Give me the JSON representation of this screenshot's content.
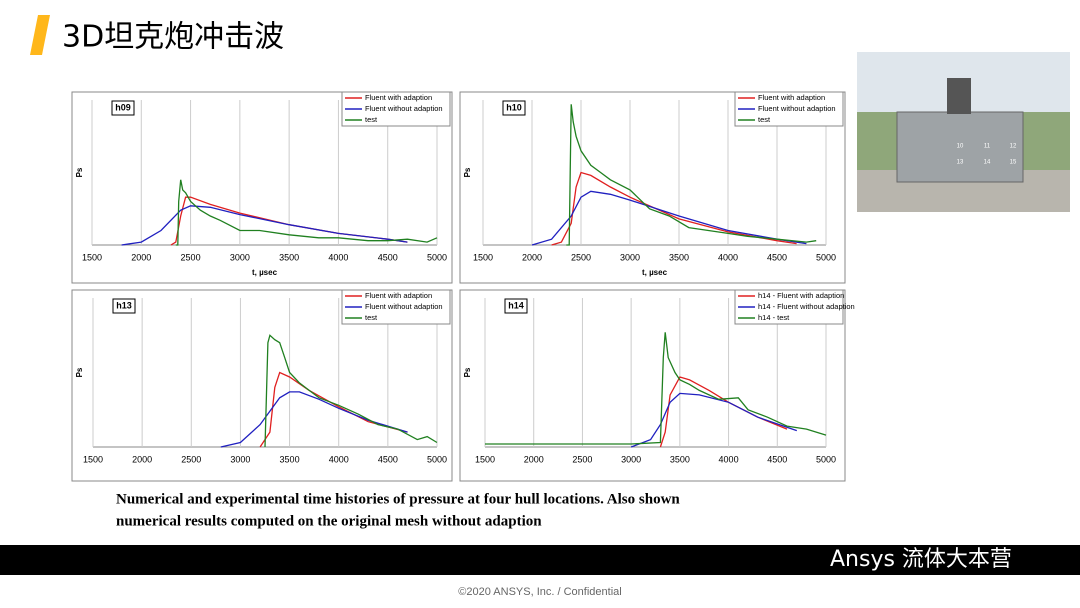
{
  "title": "3D坦克炮冲击波",
  "caption": [
    "Numerical and experimental time histories of pressure at four hull locations. Also shown",
    "numerical results computed on the original mesh without adaption"
  ],
  "footer": "©2020 ANSYS, Inc. / Confidential",
  "watermark": "Ansys 流体大本营",
  "photo": {
    "labels": [
      "10",
      "11",
      "12",
      "13",
      "14",
      "15"
    ]
  },
  "chart_data": [
    {
      "type": "line",
      "title": "h09",
      "xlabel": "t, µsec",
      "ylabel": "Ps",
      "xlim": [
        1500,
        5000
      ],
      "xticks": [
        1500,
        2000,
        2500,
        3000,
        3500,
        4000,
        4500,
        5000
      ],
      "ylim": [
        0,
        1
      ],
      "grid": true,
      "legend": "upper right",
      "series": [
        {
          "name": "Fluent with adaption",
          "color": "#e02020",
          "x": [
            2300,
            2350,
            2400,
            2450,
            2500,
            2700,
            3000,
            3500,
            4000,
            4500,
            4700
          ],
          "values": [
            0,
            0.02,
            0.2,
            0.33,
            0.33,
            0.28,
            0.22,
            0.14,
            0.08,
            0.04,
            0.02
          ]
        },
        {
          "name": "Fluent without adaption",
          "color": "#2020c0",
          "x": [
            1800,
            2000,
            2200,
            2400,
            2500,
            2700,
            3000,
            3500,
            4000,
            4500,
            4700
          ],
          "values": [
            0,
            0.02,
            0.1,
            0.24,
            0.27,
            0.26,
            0.21,
            0.14,
            0.08,
            0.04,
            0.02
          ]
        },
        {
          "name": "test",
          "color": "#208020",
          "x": [
            2350,
            2370,
            2380,
            2400,
            2420,
            2450,
            2500,
            2600,
            2700,
            2800,
            3000,
            3200,
            3500,
            3800,
            4000,
            4300,
            4500,
            4700,
            4900,
            5000
          ],
          "values": [
            0,
            0,
            0.3,
            0.45,
            0.38,
            0.36,
            0.3,
            0.24,
            0.2,
            0.17,
            0.1,
            0.1,
            0.07,
            0.05,
            0.05,
            0.03,
            0.03,
            0.04,
            0.02,
            0.05
          ]
        }
      ]
    },
    {
      "type": "line",
      "title": "h10",
      "xlabel": "t, µsec",
      "ylabel": "Ps",
      "xlim": [
        1500,
        5000
      ],
      "xticks": [
        1500,
        2000,
        2500,
        3000,
        3500,
        4000,
        4500,
        5000
      ],
      "ylim": [
        0,
        1
      ],
      "grid": true,
      "legend": "upper right",
      "series": [
        {
          "name": "Fluent with adaption",
          "color": "#e02020",
          "x": [
            2200,
            2300,
            2400,
            2450,
            2500,
            2600,
            2800,
            3000,
            3500,
            4000,
            4500,
            4700
          ],
          "values": [
            0,
            0.02,
            0.15,
            0.4,
            0.5,
            0.48,
            0.4,
            0.33,
            0.18,
            0.09,
            0.03,
            0.01
          ]
        },
        {
          "name": "Fluent without adaption",
          "color": "#2020c0",
          "x": [
            2000,
            2200,
            2400,
            2500,
            2600,
            2800,
            3000,
            3500,
            4000,
            4500,
            4800
          ],
          "values": [
            0,
            0.04,
            0.2,
            0.33,
            0.37,
            0.35,
            0.31,
            0.2,
            0.1,
            0.04,
            0.01
          ]
        },
        {
          "name": "test",
          "color": "#208020",
          "x": [
            2350,
            2380,
            2390,
            2400,
            2420,
            2450,
            2500,
            2600,
            2700,
            2800,
            3000,
            3200,
            3400,
            3600,
            3800,
            4000,
            4200,
            4500,
            4800,
            4900
          ],
          "values": [
            0,
            0,
            0.5,
            0.97,
            0.85,
            0.75,
            0.65,
            0.55,
            0.5,
            0.45,
            0.38,
            0.25,
            0.2,
            0.12,
            0.1,
            0.08,
            0.06,
            0.04,
            0.02,
            0.03
          ]
        }
      ]
    },
    {
      "type": "line",
      "title": "h13",
      "ylabel": "Ps",
      "xlim": [
        1500,
        5000
      ],
      "xticks": [
        1500,
        2000,
        2500,
        3000,
        3500,
        4000,
        4500,
        5000
      ],
      "ylim": [
        0,
        1
      ],
      "grid": true,
      "legend": "upper right",
      "series": [
        {
          "name": "Fluent with adaption",
          "color": "#e02020",
          "x": [
            3200,
            3300,
            3350,
            3400,
            3500,
            3700,
            4000,
            4300,
            4700
          ],
          "values": [
            0,
            0.1,
            0.4,
            0.5,
            0.47,
            0.38,
            0.27,
            0.17,
            0.1
          ]
        },
        {
          "name": "Fluent without adaption",
          "color": "#2020c0",
          "x": [
            2800,
            3000,
            3200,
            3400,
            3500,
            3600,
            3800,
            4000,
            4300,
            4700
          ],
          "values": [
            0,
            0.03,
            0.15,
            0.33,
            0.37,
            0.37,
            0.32,
            0.26,
            0.18,
            0.1
          ]
        },
        {
          "name": "test",
          "color": "#208020",
          "x": [
            3250,
            3280,
            3300,
            3350,
            3400,
            3450,
            3500,
            3600,
            3700,
            3800,
            4000,
            4200,
            4400,
            4600,
            4800,
            4900,
            5000
          ],
          "values": [
            0,
            0.7,
            0.75,
            0.72,
            0.7,
            0.6,
            0.5,
            0.43,
            0.38,
            0.33,
            0.28,
            0.22,
            0.15,
            0.12,
            0.05,
            0.07,
            0.03
          ]
        }
      ]
    },
    {
      "type": "line",
      "title": "h14",
      "ylabel": "Ps",
      "xlim": [
        1500,
        5000
      ],
      "xticks": [
        1500,
        2000,
        2500,
        3000,
        3500,
        4000,
        4500,
        5000
      ],
      "ylim": [
        0,
        1
      ],
      "grid": true,
      "legend": "upper right",
      "series": [
        {
          "name": "h14 - Fluent with adaption",
          "color": "#e02020",
          "x": [
            3300,
            3350,
            3400,
            3500,
            3600,
            3800,
            4000,
            4300,
            4600
          ],
          "values": [
            0,
            0.1,
            0.35,
            0.47,
            0.45,
            0.38,
            0.3,
            0.2,
            0.12
          ]
        },
        {
          "name": "h14 - Fluent without adaption",
          "color": "#2020c0",
          "x": [
            3000,
            3200,
            3300,
            3400,
            3500,
            3700,
            4000,
            4300,
            4700
          ],
          "values": [
            0,
            0.05,
            0.15,
            0.3,
            0.36,
            0.35,
            0.3,
            0.2,
            0.11
          ]
        },
        {
          "name": "h14 - test",
          "color": "#208020",
          "x": [
            1500,
            3000,
            3300,
            3330,
            3350,
            3380,
            3450,
            3500,
            3600,
            3700,
            3900,
            4100,
            4200,
            4400,
            4600,
            4800,
            5000
          ],
          "values": [
            0.02,
            0.02,
            0.03,
            0.6,
            0.77,
            0.6,
            0.5,
            0.45,
            0.42,
            0.38,
            0.32,
            0.33,
            0.25,
            0.2,
            0.14,
            0.12,
            0.08
          ]
        }
      ]
    }
  ]
}
